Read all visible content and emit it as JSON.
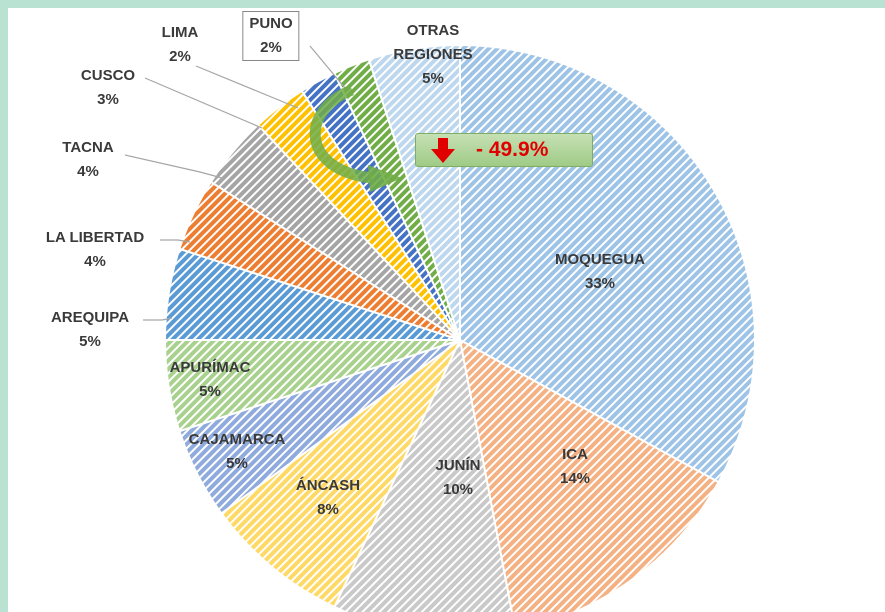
{
  "chart_data": {
    "type": "pie",
    "categories": [
      "MOQUEGUA",
      "ICA",
      "JUNÍN",
      "ÁNCASH",
      "CAJAMARCA",
      "APURÍMAC",
      "AREQUIPA",
      "LA LIBERTAD",
      "TACNA",
      "CUSCO",
      "LIMA",
      "PUNO",
      "OTRAS REGIONES"
    ],
    "values": [
      33,
      14,
      10,
      8,
      5,
      5,
      5,
      4,
      4,
      3,
      2,
      2,
      5
    ],
    "value_labels": [
      "33%",
      "14%",
      "10%",
      "8%",
      "5%",
      "5%",
      "5%",
      "4%",
      "4%",
      "3%",
      "2%",
      "2%",
      "5%"
    ],
    "colors": [
      "#9dc3e6",
      "#f4b183",
      "#c9c9c9",
      "#ffd966",
      "#8faadc",
      "#a9d18e",
      "#5b9bd5",
      "#ed7d31",
      "#a5a5a5",
      "#ffc000",
      "#4472c4",
      "#70ad47",
      "#bdd7ee"
    ],
    "annotation": "- 49.9%"
  }
}
